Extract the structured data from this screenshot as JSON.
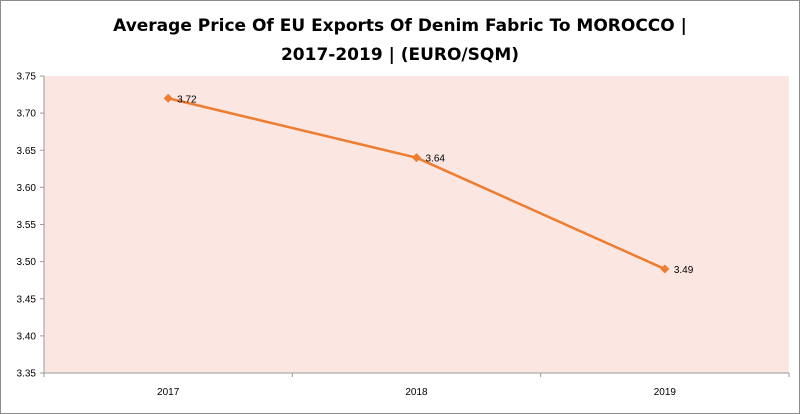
{
  "chart_data": {
    "type": "line",
    "title_line1": "Average Price Of EU Exports Of Denim Fabric To MOROCCO |",
    "title_line2": "2017-2019  | (EURO/SQM)",
    "categories": [
      "2017",
      "2018",
      "2019"
    ],
    "series": [
      {
        "values": [
          3.72,
          3.64,
          3.49
        ],
        "color": "#ed7d31"
      }
    ],
    "data_labels": [
      "3.72",
      "3.64",
      "3.49"
    ],
    "ylim": [
      3.35,
      3.75
    ],
    "yticks": [
      "3.75",
      "3.70",
      "3.65",
      "3.60",
      "3.55",
      "3.50",
      "3.45",
      "3.40",
      "3.35"
    ],
    "plot_background": "#fbe6e2",
    "grid": false,
    "legend": "none"
  }
}
